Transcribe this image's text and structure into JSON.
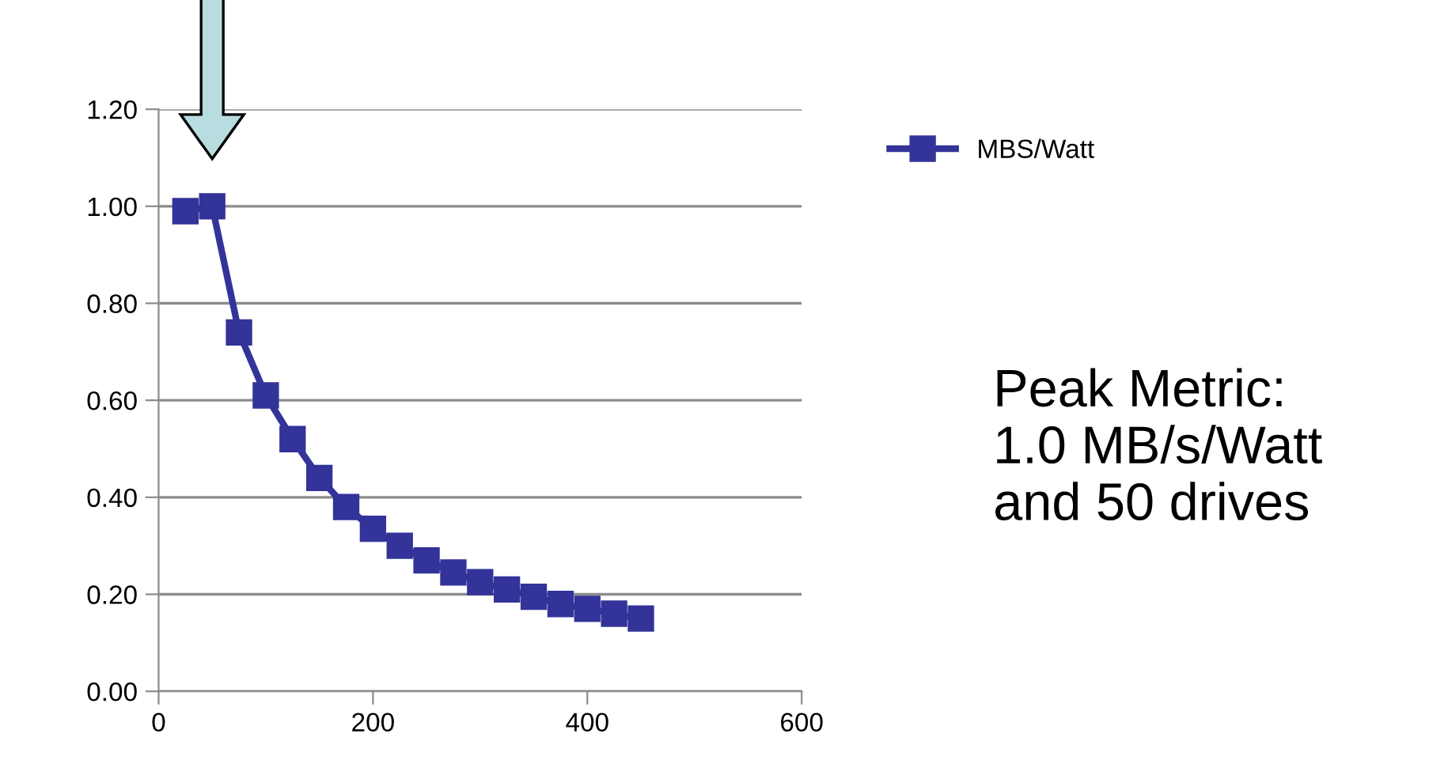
{
  "chart_data": {
    "type": "line",
    "x": [
      25,
      50,
      75,
      100,
      125,
      150,
      175,
      200,
      225,
      250,
      275,
      300,
      325,
      350,
      375,
      400,
      425,
      450
    ],
    "series": [
      {
        "name": "MBS/Watt",
        "color": "#333399",
        "values": [
          0.99,
          1.0,
          0.74,
          0.61,
          0.52,
          0.44,
          0.38,
          0.335,
          0.3,
          0.27,
          0.245,
          0.225,
          0.21,
          0.195,
          0.18,
          0.17,
          0.16,
          0.15
        ]
      }
    ],
    "xlim": [
      0,
      600
    ],
    "xticks": [
      0,
      200,
      400,
      600
    ],
    "ylim": [
      0,
      1.2
    ],
    "yticks": [
      {
        "value": 0,
        "label": "0.00"
      },
      {
        "value": 0.2,
        "label": "0.20"
      },
      {
        "value": 0.4,
        "label": "0.40"
      },
      {
        "value": 0.6,
        "label": "0.60"
      },
      {
        "value": 0.8,
        "label": "0.80"
      },
      {
        "value": 1.0,
        "label": "1.00"
      },
      {
        "value": 1.2,
        "label": "1.20"
      }
    ],
    "grid": "y",
    "legend": "top right",
    "marker": "square",
    "line_style": "solid",
    "annotations": [
      "Peak Metric:\n1.0 MB/s/Watt\nand 50 drives"
    ]
  }
}
